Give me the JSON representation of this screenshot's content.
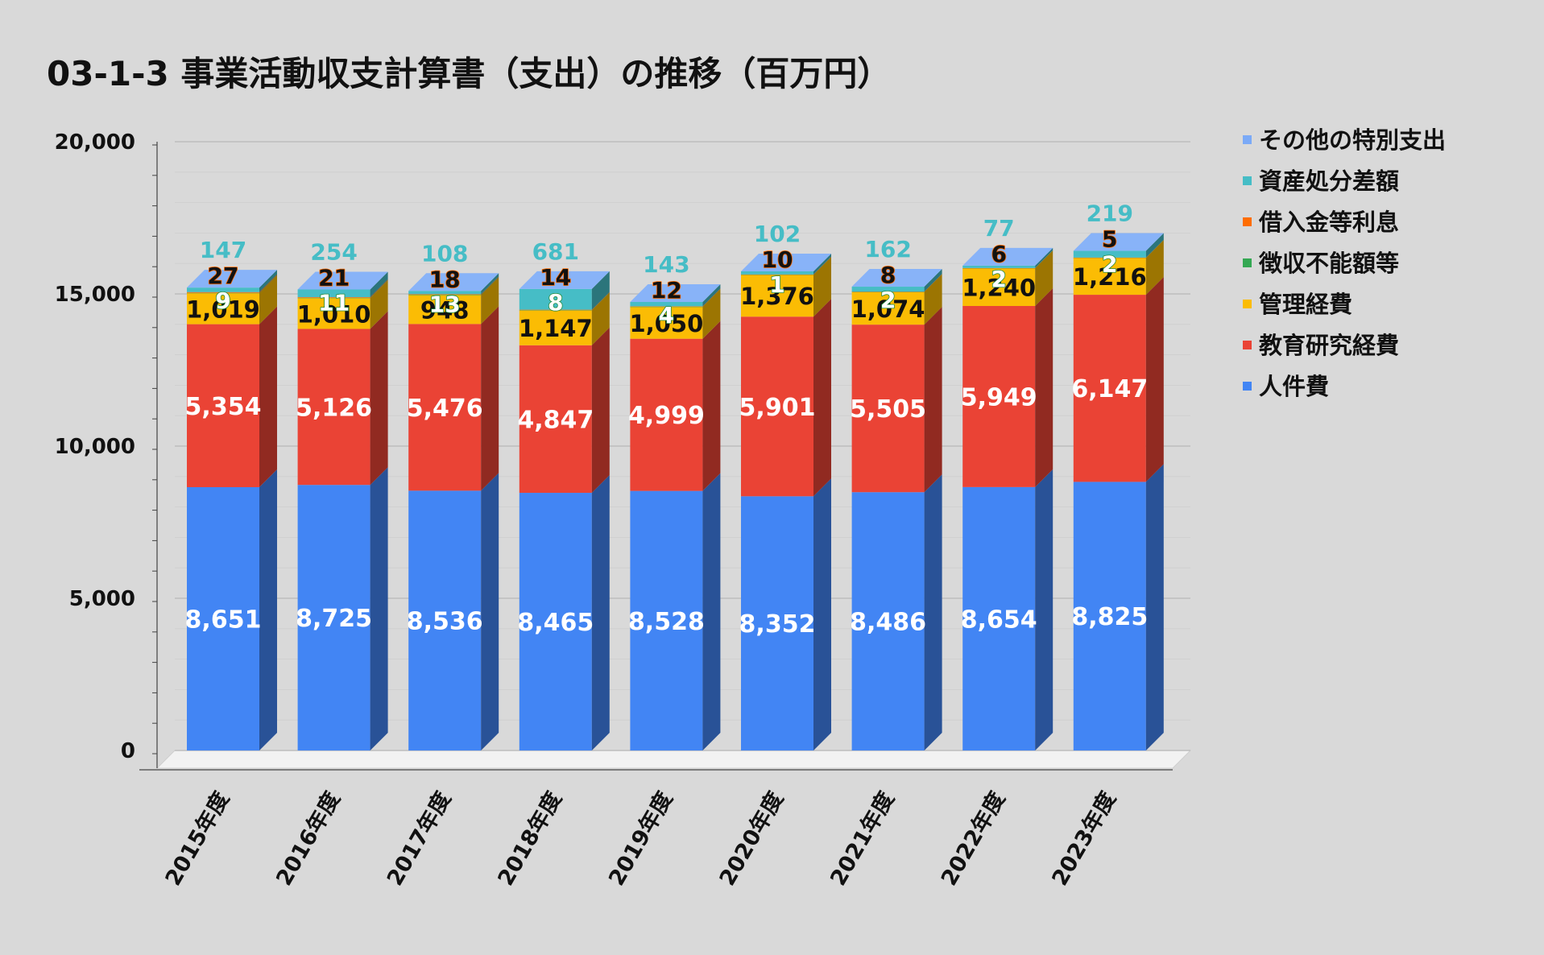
{
  "title": "03-1-3 事業活動収支計算書（支出）の推移（百万円）",
  "colors": {
    "background": "#d9d9d9",
    "gridline": "#bdbdbd",
    "floor": "#f2f2f2"
  },
  "chart_data": {
    "type": "bar",
    "stacked": true,
    "three_d": true,
    "title": "03-1-3 事業活動収支計算書（支出）の推移（百万円）",
    "xlabel": "",
    "ylabel": "",
    "ylim": [
      0,
      20000
    ],
    "yticks": [
      0,
      5000,
      10000,
      15000,
      20000
    ],
    "ytick_labels": [
      "0",
      "5,000",
      "10,000",
      "15,000",
      "20,000"
    ],
    "grid": true,
    "legend_position": "right",
    "categories": [
      "2015年度",
      "2016年度",
      "2017年度",
      "2018年度",
      "2019年度",
      "2020年度",
      "2021年度",
      "2022年度",
      "2023年度"
    ],
    "series": [
      {
        "name": "人件費",
        "color": "#4285f4",
        "values": [
          8651,
          8725,
          8536,
          8465,
          8528,
          8352,
          8486,
          8654,
          8825
        ],
        "labels": [
          "8,651",
          "8,725",
          "8,536",
          "8,465",
          "8,528",
          "8,352",
          "8,486",
          "8,654",
          "8,825"
        ]
      },
      {
        "name": "教育研究経費",
        "color": "#ea4335",
        "values": [
          5354,
          5126,
          5476,
          4847,
          4999,
          5901,
          5505,
          5949,
          6147
        ],
        "labels": [
          "5,354",
          "5,126",
          "5,476",
          "4,847",
          "4,999",
          "5,901",
          "5,505",
          "5,949",
          "6,147"
        ]
      },
      {
        "name": "管理経費",
        "color": "#fbbc04",
        "values": [
          1019,
          1010,
          948,
          1147,
          1050,
          1376,
          1074,
          1240,
          1216
        ],
        "labels": [
          "1,019",
          "1,010",
          "948",
          "1,147",
          "1,050",
          "1,376",
          "1,074",
          "1,240",
          "1,216"
        ]
      },
      {
        "name": "徴収不能額等",
        "color": "#34a853",
        "values": [
          9,
          11,
          13,
          8,
          4,
          1,
          2,
          2,
          2
        ],
        "labels": [
          "9",
          "11",
          "13",
          "8",
          "4",
          "1",
          "2",
          "2",
          "2"
        ]
      },
      {
        "name": "借入金等利息",
        "color": "#ff6d01",
        "values": [
          27,
          21,
          18,
          14,
          12,
          10,
          8,
          6,
          5
        ],
        "labels": [
          "27",
          "21",
          "18",
          "14",
          "12",
          "10",
          "8",
          "6",
          "5"
        ]
      },
      {
        "name": "資産処分差額",
        "color": "#46bdc6",
        "values": [
          147,
          254,
          108,
          681,
          143,
          102,
          162,
          77,
          219
        ],
        "labels": [
          "147",
          "254",
          "108",
          "681",
          "143",
          "102",
          "162",
          "77",
          "219"
        ]
      },
      {
        "name": "その他の特別支出",
        "color": "#7baaf7",
        "values": [
          0,
          0,
          0,
          0,
          0,
          0,
          0,
          0,
          0
        ],
        "labels": []
      }
    ]
  }
}
